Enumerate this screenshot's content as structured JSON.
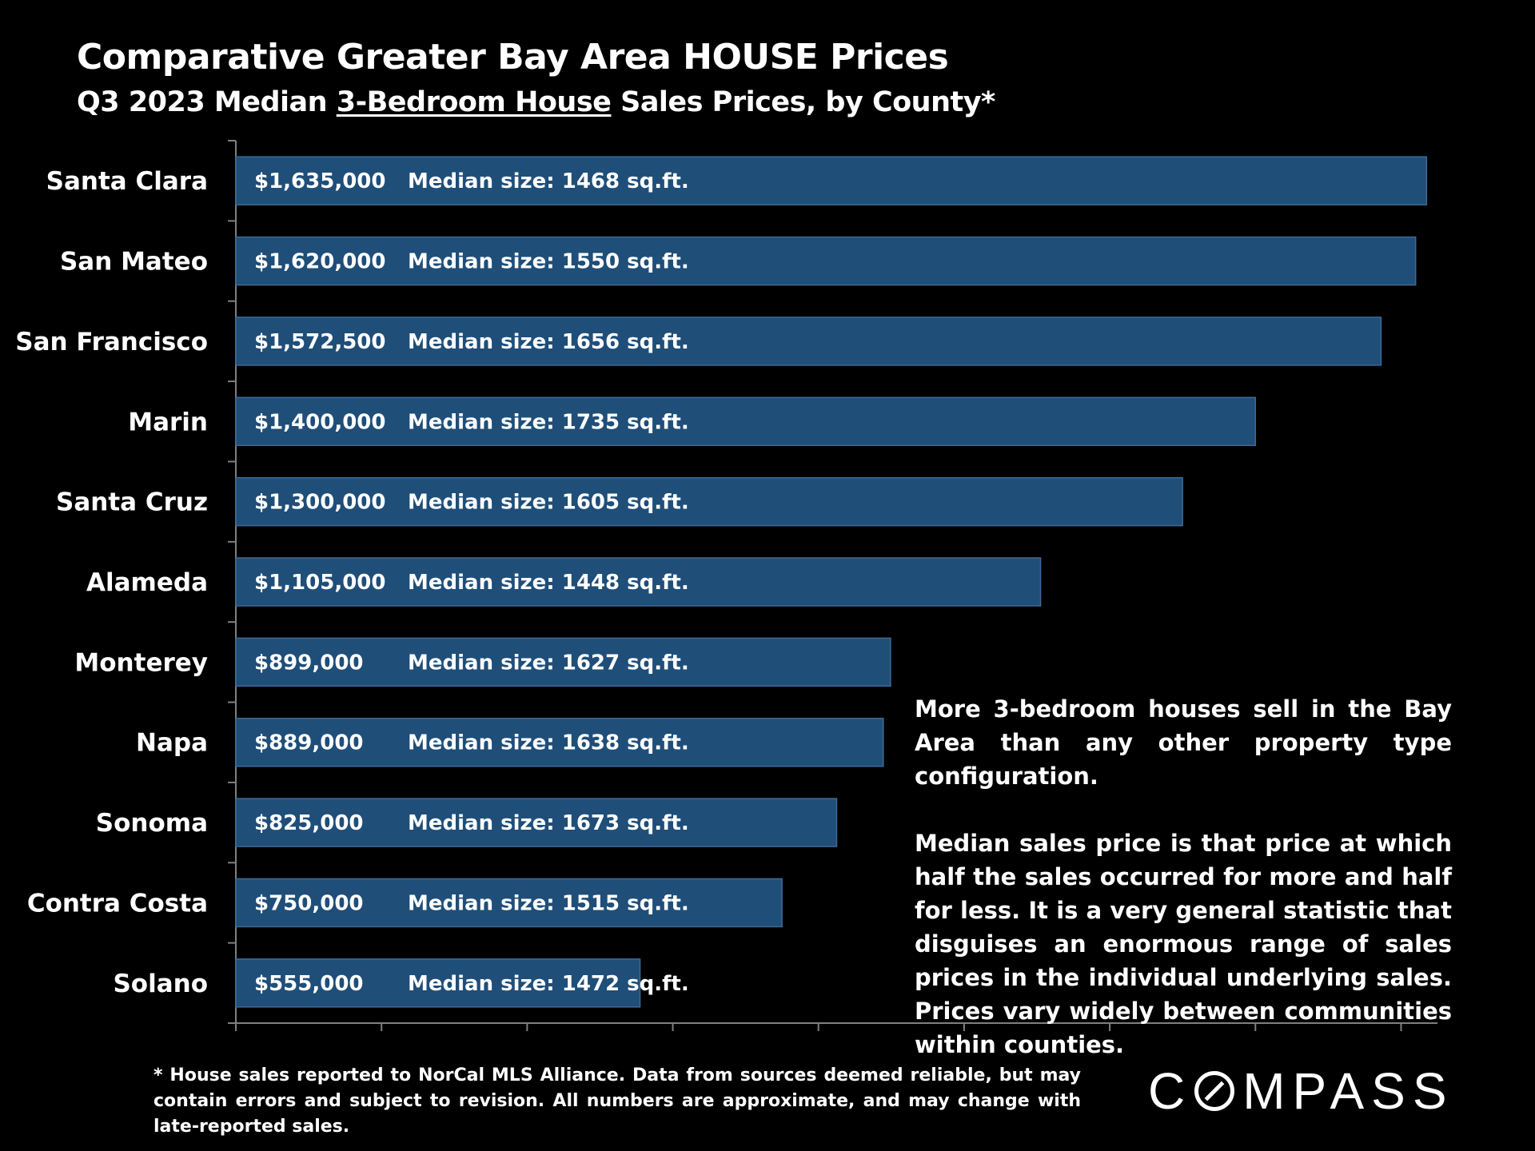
{
  "header": {
    "title": "Comparative Greater Bay Area HOUSE Prices",
    "subtitle_pre": "Q3 2023 Median ",
    "subtitle_underlined": "3-Bedroom House",
    "subtitle_post": " Sales Prices, by County*"
  },
  "chart_data": {
    "type": "bar",
    "orientation": "horizontal",
    "title": "Comparative Greater Bay Area HOUSE Prices",
    "subtitle": "Q3 2023 Median 3-Bedroom House Sales Prices, by County*",
    "categories": [
      "Santa Clara",
      "San Mateo",
      "San Francisco",
      "Marin",
      "Santa Cruz",
      "Alameda",
      "Monterey",
      "Napa",
      "Sonoma",
      "Contra Costa",
      "Solano"
    ],
    "values": [
      1635000,
      1620000,
      1572500,
      1400000,
      1300000,
      1105000,
      899000,
      889000,
      825000,
      750000,
      555000
    ],
    "value_labels": [
      "$1,635,000",
      "$1,620,000",
      "$1,572,500",
      "$1,400,000",
      "$1,300,000",
      "$1,105,000",
      "$899,000",
      "$889,000",
      "$825,000",
      "$750,000",
      "$555,000"
    ],
    "size_labels": [
      "Median size: 1468 sq.ft.",
      "Median size: 1550 sq.ft.",
      "Median size: 1656 sq.ft.",
      "Median size: 1735 sq.ft.",
      "Median size: 1605 sq.ft.",
      "Median size: 1448 sq.ft.",
      "Median size: 1627 sq.ft.",
      "Median size: 1638 sq.ft.",
      "Median size: 1673 sq.ft.",
      "Median size: 1515 sq.ft.",
      "Median size: 1472 sq.ft."
    ],
    "xlim": [
      0,
      1650000
    ],
    "x_tick_step": 200000,
    "show_tick_labels": false,
    "xlabel": "",
    "ylabel": "",
    "grid": false,
    "bar_color": "#1f4e79",
    "bar_border_color": "#3d6a96"
  },
  "notes": {
    "paragraph1": "More 3-bedroom houses sell in the Bay Area than any other property type configuration.",
    "paragraph2": "Median sales price is that price at which half the sales occurred for more and half for less. It is a very general statistic that disguises an enormous range of sales prices in the individual underlying sales. Prices vary widely between communities within counties."
  },
  "footnote": "* House sales reported to NorCal MLS Alliance. Data from sources deemed reliable, but may contain errors and subject to revision. All numbers are approximate, and may change with late-reported sales.",
  "logo": {
    "part1": "C",
    "part2": "MPASS"
  }
}
